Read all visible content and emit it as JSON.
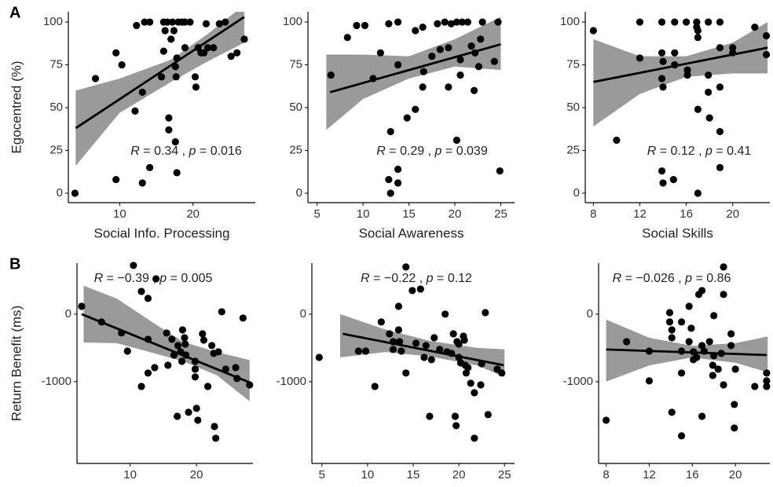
{
  "chart_data": [
    {
      "type": "scatter",
      "panel_label": "A",
      "ylabel": "Egocentred (%)",
      "xlabel": "Social Info. Processing",
      "annotation": {
        "r": "R",
        "r_rest": " = 0.34 , ",
        "p": "p",
        "p_rest": " = 0.016"
      },
      "x": [
        3.9,
        6.7,
        9.5,
        10.3,
        9.5,
        12.1,
        12.3,
        13.1,
        13.4,
        14.1,
        13.1,
        14.1,
        15.7,
        16,
        16.2,
        16,
        16.5,
        16.7,
        16.7,
        17,
        17.2,
        17.4,
        17.6,
        17.7,
        17.6,
        17.8,
        18,
        18.5,
        18.9,
        19.6,
        17.8,
        18.9,
        20.3,
        20.4,
        20.7,
        21.1,
        21.5,
        22,
        22.8,
        21.8,
        23.6,
        24.4,
        25.2,
        26,
        27
      ],
      "values": [
        0,
        67,
        82,
        75,
        8,
        48,
        98,
        59,
        100,
        100,
        6,
        15,
        68,
        83,
        95,
        100,
        100,
        44,
        37,
        90,
        100,
        95,
        74,
        68,
        30,
        12,
        100,
        100,
        100,
        100,
        79,
        85,
        68,
        62,
        85,
        82,
        82,
        85,
        85,
        99,
        99,
        100,
        80,
        82,
        90
      ],
      "xlim": [
        3,
        28.5
      ],
      "ylim": [
        -5.5,
        106
      ],
      "xticks": [
        10,
        20
      ],
      "yticks": [
        0,
        25,
        50,
        75,
        100
      ],
      "fit": {
        "x": [
          4,
          27
        ],
        "values": [
          38,
          103
        ]
      },
      "band": {
        "x": [
          4,
          10,
          17,
          22,
          27
        ],
        "lower": [
          16,
          47,
          65,
          77,
          88
        ],
        "upper": [
          60,
          67,
          78,
          93,
          110
        ]
      },
      "color": "#000000",
      "band_color": "#9a9a9a"
    },
    {
      "type": "scatter",
      "xlabel": "Social Awareness",
      "annotation": {
        "r": "R",
        "r_rest": " = 0.29 , ",
        "p": "p",
        "p_rest": " = 0.039"
      },
      "x": [
        6.5,
        8.3,
        9.3,
        10.2,
        11.1,
        11.9,
        12.8,
        13.8,
        13,
        12.8,
        13,
        13.8,
        13.8,
        13.8,
        14.8,
        15.7,
        15.7,
        16.5,
        16.5,
        16.6,
        17.5,
        18.1,
        18.4,
        18.9,
        19.3,
        19.3,
        19.6,
        20.2,
        20.6,
        20.6,
        20.2,
        20.8,
        21.4,
        21.8,
        22.1,
        22.2,
        22.6,
        22.8,
        23,
        24.3,
        24.7,
        24.9
      ],
      "values": [
        69,
        91,
        98,
        98,
        67,
        82,
        99,
        100,
        36,
        8,
        0,
        14,
        6,
        75,
        44,
        49,
        95,
        97,
        62,
        71,
        80,
        99,
        84,
        100,
        85,
        62,
        99,
        100,
        78,
        69,
        31,
        100,
        100,
        86,
        60,
        82,
        74,
        90,
        100,
        77,
        100,
        13
      ],
      "xlim": [
        4,
        26.5
      ],
      "ylim": [
        -5.5,
        106
      ],
      "xticks": [
        5,
        10,
        15,
        20,
        25
      ],
      "yticks": [
        0,
        25,
        50,
        75,
        100
      ],
      "fit": {
        "x": [
          6.4,
          25
        ],
        "values": [
          59,
          87
        ]
      },
      "band": {
        "x": [
          6,
          10,
          15,
          20,
          25
        ],
        "lower": [
          37,
          55,
          67,
          74,
          72
        ],
        "upper": [
          81,
          81,
          80,
          90,
          103
        ]
      },
      "color": "#000000",
      "band_color": "#9a9a9a"
    },
    {
      "type": "scatter",
      "xlabel": "Social Skills",
      "annotation": {
        "r": "R",
        "r_rest": " = 0.12 , ",
        "p": "p",
        "p_rest": " = 0.41"
      },
      "x": [
        8,
        10,
        12,
        12,
        13.9,
        13.9,
        14,
        13.9,
        14,
        13.9,
        14,
        14.9,
        15,
        15,
        15,
        16,
        16.1,
        16.1,
        16.9,
        16.9,
        17,
        17,
        17,
        17,
        17.9,
        17.9,
        17.9,
        18,
        18.9,
        18.9,
        18.9,
        18.9,
        18.9,
        20,
        20,
        21.9,
        22.9,
        22.9
      ],
      "values": [
        95,
        31,
        79,
        100,
        100,
        82,
        77,
        67,
        62,
        13,
        6,
        8,
        100,
        82,
        75,
        100,
        72,
        69,
        100,
        97,
        95,
        91,
        49,
        0,
        100,
        69,
        59,
        44,
        100,
        62,
        36,
        15,
        85,
        85,
        82,
        97,
        92,
        81
      ],
      "xlim": [
        7.3,
        23.2
      ],
      "ylim": [
        -5.5,
        106
      ],
      "xticks": [
        8,
        12,
        16,
        20
      ],
      "yticks": [
        0,
        25,
        50,
        75,
        100
      ],
      "fit": {
        "x": [
          8,
          23
        ],
        "values": [
          65,
          85
        ]
      },
      "band": {
        "x": [
          8,
          12,
          16,
          20,
          23
        ],
        "lower": [
          39,
          58,
          68,
          70,
          70
        ],
        "upper": [
          90,
          80,
          80,
          88,
          100
        ]
      },
      "color": "#000000",
      "band_color": "#9a9a9a"
    },
    {
      "type": "scatter",
      "panel_label": "B",
      "ylabel": "Return Benefit (ms)",
      "xlabel": "Social Info. Processing",
      "annotation": {
        "r": "R",
        "r_rest": " = −0.39 , ",
        "p": "p",
        "p_rest": " = 0.005"
      },
      "x": [
        2.7,
        5.7,
        8.7,
        9.6,
        10.5,
        11.7,
        11.7,
        12.7,
        12.7,
        12.7,
        13.7,
        13.9,
        15.5,
        15.7,
        16.3,
        16.6,
        17.1,
        17.2,
        17.6,
        17.8,
        17.9,
        18.2,
        18.3,
        18.4,
        18.8,
        19.8,
        19.8,
        19.8,
        20,
        20.2,
        20.9,
        21.1,
        21.7,
        22.3,
        22.6,
        22.7,
        22.9,
        23.3,
        23.8,
        24.4,
        25.9,
        26.1,
        27,
        28
      ],
      "values": [
        116,
        -116,
        -279,
        -547,
        721,
        337,
        -1070,
        233,
        -372,
        -872,
        -791,
        523,
        -279,
        -756,
        -372,
        -605,
        -1512,
        -465,
        -558,
        -698,
        -233,
        -349,
        -442,
        -605,
        -1453,
        -698,
        -814,
        -930,
        -1395,
        -1570,
        -291,
        -384,
        -1070,
        -465,
        -581,
        -1663,
        -1837,
        -558,
        35,
        -814,
        -791,
        -953,
        -58,
        -1047
      ],
      "xlim": [
        2,
        28.5
      ],
      "ylim": [
        -2210,
        755
      ],
      "xticks": [
        10,
        20
      ],
      "yticks": [
        -1000,
        0
      ],
      "fit": {
        "x": [
          2.7,
          28.3
        ],
        "values": [
          0,
          -1023
        ]
      },
      "band": {
        "x": [
          3,
          8,
          14,
          18,
          23,
          28
        ],
        "lower": [
          -420,
          -430,
          -590,
          -700,
          -900,
          -1290
        ],
        "upper": [
          420,
          230,
          -160,
          -410,
          -560,
          -680
        ]
      },
      "color": "#000000",
      "band_color": "#9a9a9a"
    },
    {
      "type": "scatter",
      "xlabel": "Social Awareness",
      "annotation": {
        "r": "R",
        "r_rest": " = −0.22 , ",
        "p": "p",
        "p_rest": " = 0.12"
      },
      "x": [
        4.7,
        9,
        9.8,
        10.8,
        11.5,
        12.4,
        12.8,
        12.8,
        13.4,
        13.4,
        13.5,
        13.7,
        14.2,
        14.2,
        14.9,
        15.3,
        15.8,
        16.2,
        16.4,
        16.8,
        17,
        17.3,
        17.9,
        18.5,
        18.7,
        19.2,
        19.4,
        19.6,
        19.7,
        19.8,
        20,
        20,
        20.2,
        20.5,
        20.6,
        20.7,
        20.8,
        21,
        21.3,
        21.7,
        21.7,
        22.4,
        22.5,
        22.9,
        23.2,
        24.2,
        24.7
      ],
      "values": [
        -640,
        -547,
        -547,
        -1070,
        -116,
        -291,
        -407,
        -523,
        116,
        -233,
        -407,
        -547,
        -872,
        698,
        349,
        -430,
        372,
        -640,
        -465,
        -1512,
        -674,
        -349,
        -523,
        0,
        -558,
        -581,
        -291,
        -1512,
        -1651,
        -407,
        -442,
        -640,
        -721,
        -326,
        -384,
        -756,
        -872,
        -791,
        -1023,
        -1163,
        -1837,
        -1047,
        -733,
        23,
        -1488,
        -814,
        -872
      ],
      "xlim": [
        3.9,
        26.1
      ],
      "ylim": [
        -2210,
        755
      ],
      "xticks": [
        5,
        10,
        15,
        20,
        25
      ],
      "yticks": [
        -1000,
        0
      ],
      "fit": {
        "x": [
          7.3,
          24.9
        ],
        "values": [
          -291,
          -756
        ]
      },
      "band": {
        "x": [
          7,
          12,
          17,
          22,
          25
        ],
        "lower": [
          -640,
          -560,
          -630,
          -760,
          -930
        ],
        "upper": [
          0,
          -230,
          -400,
          -500,
          -520
        ]
      },
      "color": "#000000",
      "band_color": "#9a9a9a"
    },
    {
      "type": "scatter",
      "xlabel": "Social Skills",
      "annotation": {
        "r": "R",
        "r_rest": " = −0.026 , ",
        "p": "p",
        "p_rest": " = 0.86"
      },
      "x": [
        8,
        9.9,
        12,
        12,
        13.9,
        13.9,
        14.1,
        14.1,
        14.1,
        15,
        15,
        15,
        15,
        15.7,
        15.7,
        15.9,
        16.1,
        16.1,
        16.4,
        16.6,
        16.9,
        16.9,
        16.9,
        17.1,
        17.6,
        17.9,
        17.9,
        18,
        18,
        18.4,
        18.7,
        18.9,
        18.9,
        18.9,
        19.6,
        19.6,
        19.9,
        19.9,
        20,
        21.8,
        22.9,
        22.9,
        22.9
      ],
      "values": [
        -1570,
        -407,
        -547,
        -988,
        23,
        -116,
        -233,
        -349,
        -1453,
        -116,
        -547,
        -872,
        -1802,
        116,
        -407,
        -209,
        -558,
        -674,
        -640,
        291,
        -465,
        349,
        -1512,
        -547,
        -407,
        -756,
        -907,
        -23,
        -616,
        -814,
        -581,
        698,
        -1047,
        291,
        -291,
        -465,
        -1337,
        -1686,
        -814,
        -1070,
        -872,
        -988,
        -1070
      ],
      "xlim": [
        7.3,
        23.2
      ],
      "ylim": [
        -2210,
        755
      ],
      "xticks": [
        8,
        12,
        16,
        20
      ],
      "yticks": [
        -1000,
        0
      ],
      "fit": {
        "x": [
          8,
          22.9
        ],
        "values": [
          -523,
          -605
        ]
      },
      "band": {
        "x": [
          8,
          12,
          16,
          20,
          23
        ],
        "lower": [
          -1000,
          -760,
          -640,
          -720,
          -860
        ],
        "upper": [
          -80,
          -350,
          -470,
          -430,
          -330
        ]
      },
      "color": "#000000",
      "band_color": "#9a9a9a"
    }
  ]
}
